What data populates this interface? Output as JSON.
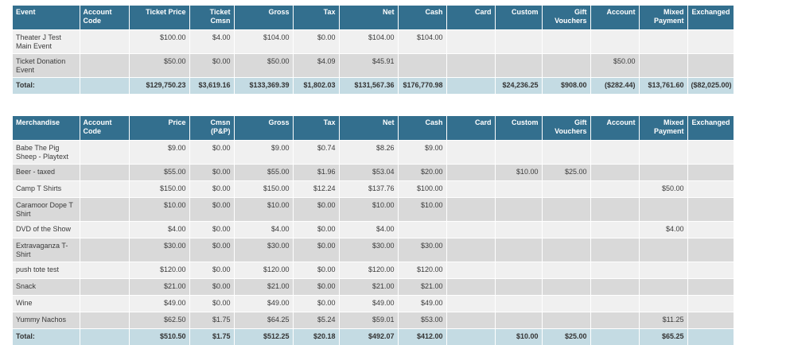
{
  "events": {
    "headers": [
      "Event",
      "Account Code",
      "Ticket Price",
      "Ticket Cmsn",
      "Gross",
      "Tax",
      "Net",
      "Cash",
      "Card",
      "Custom",
      "Gift Vouchers",
      "Account",
      "Mixed Payment",
      "Exchanged"
    ],
    "rows": [
      [
        "Theater J Test Main Event",
        "",
        "$100.00",
        "$4.00",
        "$104.00",
        "$0.00",
        "$104.00",
        "$104.00",
        "",
        "",
        "",
        "",
        "",
        ""
      ],
      [
        "Ticket Donation Event",
        "",
        "$50.00",
        "$0.00",
        "$50.00",
        "$4.09",
        "$45.91",
        "",
        "",
        "",
        "",
        "$50.00",
        "",
        ""
      ]
    ],
    "total": [
      "Total:",
      "",
      "$129,750.23",
      "$3,619.16",
      "$133,369.39",
      "$1,802.03",
      "$131,567.36",
      "$176,770.98",
      "",
      "$24,236.25",
      "$908.00",
      "($282.44)",
      "$13,761.60",
      "($82,025.00)"
    ]
  },
  "merchandise": {
    "headers": [
      "Merchandise",
      "Account Code",
      "Price",
      "Cmsn (P&P)",
      "Gross",
      "Tax",
      "Net",
      "Cash",
      "Card",
      "Custom",
      "Gift Vouchers",
      "Account",
      "Mixed Payment",
      "Exchanged"
    ],
    "rows": [
      [
        "Babe The Pig Sheep - Playtext",
        "",
        "$9.00",
        "$0.00",
        "$9.00",
        "$0.74",
        "$8.26",
        "$9.00",
        "",
        "",
        "",
        "",
        "",
        ""
      ],
      [
        "Beer - taxed",
        "",
        "$55.00",
        "$0.00",
        "$55.00",
        "$1.96",
        "$53.04",
        "$20.00",
        "",
        "$10.00",
        "$25.00",
        "",
        "",
        ""
      ],
      [
        "Camp T Shirts",
        "",
        "$150.00",
        "$0.00",
        "$150.00",
        "$12.24",
        "$137.76",
        "$100.00",
        "",
        "",
        "",
        "",
        "$50.00",
        ""
      ],
      [
        "Caramoor Dope T Shirt",
        "",
        "$10.00",
        "$0.00",
        "$10.00",
        "$0.00",
        "$10.00",
        "$10.00",
        "",
        "",
        "",
        "",
        "",
        ""
      ],
      [
        "DVD of the Show",
        "",
        "$4.00",
        "$0.00",
        "$4.00",
        "$0.00",
        "$4.00",
        "",
        "",
        "",
        "",
        "",
        "$4.00",
        ""
      ],
      [
        "Extravaganza T-Shirt",
        "",
        "$30.00",
        "$0.00",
        "$30.00",
        "$0.00",
        "$30.00",
        "$30.00",
        "",
        "",
        "",
        "",
        "",
        ""
      ],
      [
        "push tote test",
        "",
        "$120.00",
        "$0.00",
        "$120.00",
        "$0.00",
        "$120.00",
        "$120.00",
        "",
        "",
        "",
        "",
        "",
        ""
      ],
      [
        "Snack",
        "",
        "$21.00",
        "$0.00",
        "$21.00",
        "$0.00",
        "$21.00",
        "$21.00",
        "",
        "",
        "",
        "",
        "",
        ""
      ],
      [
        "Wine",
        "",
        "$49.00",
        "$0.00",
        "$49.00",
        "$0.00",
        "$49.00",
        "$49.00",
        "",
        "",
        "",
        "",
        "",
        ""
      ],
      [
        "Yummy Nachos",
        "",
        "$62.50",
        "$1.75",
        "$64.25",
        "$5.24",
        "$59.01",
        "$53.00",
        "",
        "",
        "",
        "",
        "$11.25",
        ""
      ]
    ],
    "total": [
      "Total:",
      "",
      "$510.50",
      "$1.75",
      "$512.25",
      "$20.18",
      "$492.07",
      "$412.00",
      "",
      "$10.00",
      "$25.00",
      "",
      "$65.25",
      ""
    ]
  },
  "colors": {
    "header_bg": "#336f8e",
    "header_text": "#ffffff",
    "row_odd": "#f0f0f0",
    "row_even": "#d9d9d9",
    "total_bg": "#c4dbe3"
  }
}
